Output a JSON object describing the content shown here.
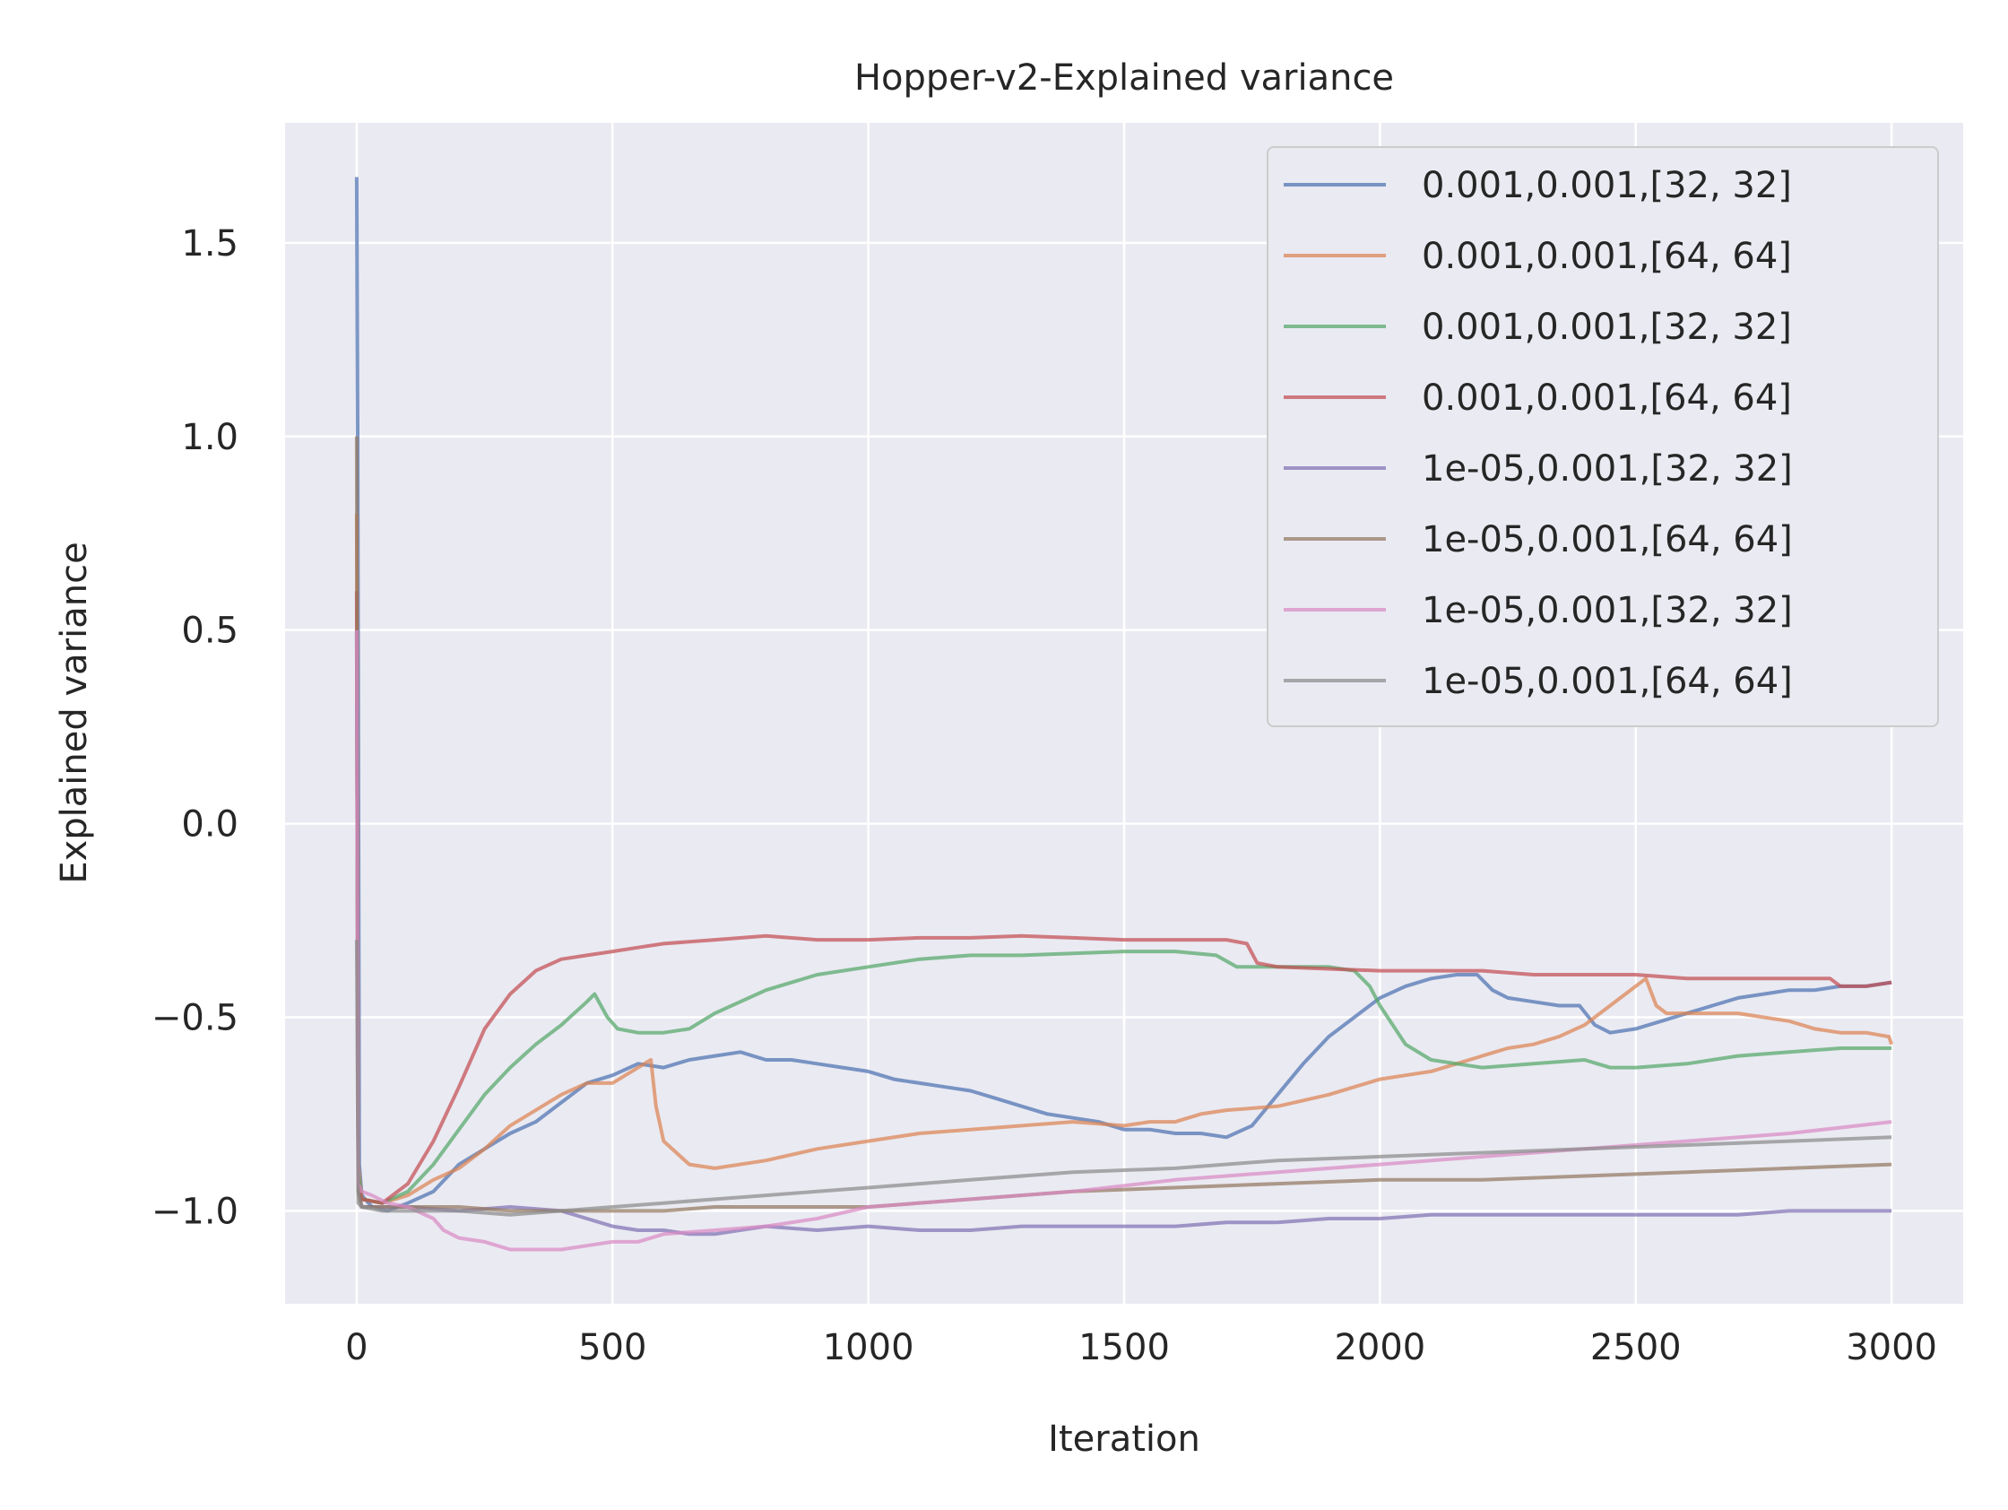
{
  "chart_data": {
    "type": "line",
    "title": "Hopper-v2-Explained variance",
    "xlabel": "Iteration",
    "ylabel": "Explained variance",
    "xlim": [
      -140,
      3140
    ],
    "ylim": [
      -1.24,
      1.81
    ],
    "xticks": [
      0,
      500,
      1000,
      1500,
      2000,
      2500,
      3000
    ],
    "xtick_labels": [
      "0",
      "500",
      "1000",
      "1500",
      "2000",
      "2500",
      "3000"
    ],
    "yticks": [
      1.5,
      1.0,
      0.5,
      0.0,
      -0.5,
      -1.0
    ],
    "ytick_labels": [
      "1.5",
      "1.0",
      "0.5",
      "0.0",
      "−0.5",
      "−1.0"
    ],
    "grid": true,
    "legend_position": "top-right",
    "background": "#eaeaf2",
    "series": [
      {
        "name": "0.001,0.001,[32, 32]",
        "color": "#4c72b0",
        "x": [
          0,
          2,
          5,
          10,
          30,
          60,
          100,
          150,
          200,
          250,
          300,
          350,
          400,
          450,
          500,
          550,
          600,
          650,
          700,
          750,
          800,
          850,
          900,
          950,
          1000,
          1050,
          1100,
          1150,
          1200,
          1250,
          1300,
          1350,
          1400,
          1450,
          1500,
          1550,
          1600,
          1650,
          1700,
          1750,
          1800,
          1850,
          1900,
          1950,
          2000,
          2050,
          2100,
          2150,
          2190,
          2220,
          2250,
          2300,
          2350,
          2390,
          2420,
          2450,
          2500,
          2550,
          2600,
          2650,
          2700,
          2750,
          2800,
          2850,
          2900,
          2950,
          3000
        ],
        "y": [
          1.67,
          1.0,
          -0.88,
          -0.96,
          -0.99,
          -1.0,
          -0.98,
          -0.95,
          -0.88,
          -0.84,
          -0.8,
          -0.77,
          -0.72,
          -0.67,
          -0.65,
          -0.62,
          -0.63,
          -0.61,
          -0.6,
          -0.59,
          -0.61,
          -0.61,
          -0.62,
          -0.63,
          -0.64,
          -0.66,
          -0.67,
          -0.68,
          -0.69,
          -0.71,
          -0.73,
          -0.75,
          -0.76,
          -0.77,
          -0.79,
          -0.79,
          -0.8,
          -0.8,
          -0.81,
          -0.78,
          -0.7,
          -0.62,
          -0.55,
          -0.5,
          -0.45,
          -0.42,
          -0.4,
          -0.39,
          -0.39,
          -0.43,
          -0.45,
          -0.46,
          -0.47,
          -0.47,
          -0.52,
          -0.54,
          -0.53,
          -0.51,
          -0.49,
          -0.47,
          -0.45,
          -0.44,
          -0.43,
          -0.43,
          -0.42,
          -0.42,
          -0.41
        ]
      },
      {
        "name": "0.001,0.001,[64, 64]",
        "color": "#dd8452",
        "x": [
          0,
          3,
          10,
          50,
          100,
          150,
          200,
          250,
          300,
          350,
          400,
          450,
          500,
          550,
          575,
          585,
          600,
          650,
          700,
          800,
          900,
          1000,
          1100,
          1200,
          1300,
          1400,
          1500,
          1550,
          1600,
          1650,
          1700,
          1800,
          1900,
          1950,
          2000,
          2050,
          2100,
          2150,
          2200,
          2250,
          2300,
          2350,
          2400,
          2450,
          2500,
          2520,
          2540,
          2560,
          2600,
          2700,
          2750,
          2800,
          2850,
          2900,
          2950,
          2995,
          3000
        ],
        "y": [
          0.8,
          -0.88,
          -0.97,
          -0.98,
          -0.96,
          -0.92,
          -0.89,
          -0.84,
          -0.78,
          -0.74,
          -0.7,
          -0.67,
          -0.67,
          -0.63,
          -0.61,
          -0.73,
          -0.82,
          -0.88,
          -0.89,
          -0.87,
          -0.84,
          -0.82,
          -0.8,
          -0.79,
          -0.78,
          -0.77,
          -0.78,
          -0.77,
          -0.77,
          -0.75,
          -0.74,
          -0.73,
          -0.7,
          -0.68,
          -0.66,
          -0.65,
          -0.64,
          -0.62,
          -0.6,
          -0.58,
          -0.57,
          -0.55,
          -0.52,
          -0.47,
          -0.42,
          -0.4,
          -0.47,
          -0.49,
          -0.49,
          -0.49,
          -0.5,
          -0.51,
          -0.53,
          -0.54,
          -0.54,
          -0.55,
          -0.57
        ]
      },
      {
        "name": "0.001,0.001,[32, 32]",
        "color": "#55a868",
        "x": [
          0,
          3,
          10,
          50,
          100,
          150,
          200,
          250,
          300,
          350,
          400,
          450,
          465,
          490,
          510,
          550,
          600,
          650,
          700,
          800,
          900,
          1000,
          1100,
          1200,
          1300,
          1400,
          1500,
          1600,
          1680,
          1720,
          1800,
          1900,
          1950,
          1980,
          2000,
          2030,
          2050,
          2100,
          2150,
          2200,
          2300,
          2400,
          2450,
          2500,
          2600,
          2700,
          2800,
          2900,
          3000
        ],
        "y": [
          0.5,
          -0.9,
          -0.97,
          -0.98,
          -0.95,
          -0.88,
          -0.79,
          -0.7,
          -0.63,
          -0.57,
          -0.52,
          -0.46,
          -0.44,
          -0.5,
          -0.53,
          -0.54,
          -0.54,
          -0.53,
          -0.49,
          -0.43,
          -0.39,
          -0.37,
          -0.35,
          -0.34,
          -0.34,
          -0.335,
          -0.33,
          -0.33,
          -0.34,
          -0.37,
          -0.37,
          -0.37,
          -0.38,
          -0.42,
          -0.47,
          -0.53,
          -0.57,
          -0.61,
          -0.62,
          -0.63,
          -0.62,
          -0.61,
          -0.63,
          -0.63,
          -0.62,
          -0.6,
          -0.59,
          -0.58,
          -0.58
        ]
      },
      {
        "name": "0.001,0.001,[64, 64]",
        "color": "#c44e52",
        "x": [
          0,
          3,
          10,
          50,
          100,
          150,
          200,
          250,
          300,
          350,
          400,
          450,
          500,
          550,
          600,
          700,
          800,
          900,
          1000,
          1100,
          1200,
          1300,
          1400,
          1500,
          1600,
          1700,
          1740,
          1760,
          1800,
          1900,
          2000,
          2100,
          2200,
          2300,
          2400,
          2500,
          2600,
          2700,
          2800,
          2880,
          2900,
          2950,
          3000
        ],
        "y": [
          0.6,
          -0.93,
          -0.97,
          -0.98,
          -0.93,
          -0.82,
          -0.68,
          -0.53,
          -0.44,
          -0.38,
          -0.35,
          -0.34,
          -0.33,
          -0.32,
          -0.31,
          -0.3,
          -0.29,
          -0.3,
          -0.3,
          -0.295,
          -0.295,
          -0.29,
          -0.295,
          -0.3,
          -0.3,
          -0.3,
          -0.31,
          -0.36,
          -0.37,
          -0.375,
          -0.38,
          -0.38,
          -0.38,
          -0.39,
          -0.39,
          -0.39,
          -0.4,
          -0.4,
          -0.4,
          -0.4,
          -0.42,
          -0.42,
          -0.41
        ]
      },
      {
        "name": "1e-05,0.001,[32, 32]",
        "color": "#8172b3",
        "x": [
          0,
          3,
          10,
          50,
          100,
          200,
          300,
          400,
          450,
          500,
          550,
          600,
          650,
          700,
          800,
          900,
          1000,
          1100,
          1200,
          1300,
          1400,
          1500,
          1600,
          1700,
          1800,
          1900,
          2000,
          2100,
          2200,
          2300,
          2400,
          2500,
          2600,
          2700,
          2800,
          2900,
          3000
        ],
        "y": [
          0.5,
          -0.95,
          -0.99,
          -0.99,
          -0.99,
          -1.0,
          -0.99,
          -1.0,
          -1.02,
          -1.04,
          -1.05,
          -1.05,
          -1.06,
          -1.06,
          -1.04,
          -1.05,
          -1.04,
          -1.05,
          -1.05,
          -1.04,
          -1.04,
          -1.04,
          -1.04,
          -1.03,
          -1.03,
          -1.02,
          -1.02,
          -1.01,
          -1.01,
          -1.01,
          -1.01,
          -1.01,
          -1.01,
          -1.01,
          -1.0,
          -1.0,
          -1.0
        ]
      },
      {
        "name": "1e-05,0.001,[64, 64]",
        "color": "#937860",
        "x": [
          0,
          3,
          10,
          50,
          100,
          200,
          300,
          400,
          500,
          600,
          700,
          800,
          900,
          1000,
          1200,
          1400,
          1600,
          1800,
          2000,
          2200,
          2400,
          2600,
          2800,
          3000
        ],
        "y": [
          1.0,
          -0.95,
          -0.99,
          -0.99,
          -0.99,
          -0.99,
          -1.0,
          -1.0,
          -1.0,
          -1.0,
          -0.99,
          -0.99,
          -0.99,
          -0.99,
          -0.97,
          -0.95,
          -0.94,
          -0.93,
          -0.92,
          -0.92,
          -0.91,
          -0.9,
          -0.89,
          -0.88
        ]
      },
      {
        "name": "1e-05,0.001,[32, 32]",
        "color": "#da8bc3",
        "x": [
          0,
          3,
          10,
          30,
          60,
          100,
          150,
          170,
          200,
          250,
          300,
          350,
          400,
          450,
          500,
          550,
          600,
          700,
          800,
          900,
          1000,
          1200,
          1400,
          1600,
          1800,
          2000,
          2200,
          2400,
          2600,
          2800,
          3000
        ],
        "y": [
          0.5,
          -0.93,
          -0.95,
          -0.96,
          -0.98,
          -0.99,
          -1.02,
          -1.05,
          -1.07,
          -1.08,
          -1.1,
          -1.1,
          -1.1,
          -1.09,
          -1.08,
          -1.08,
          -1.06,
          -1.05,
          -1.04,
          -1.02,
          -0.99,
          -0.97,
          -0.95,
          -0.92,
          -0.9,
          -0.88,
          -0.86,
          -0.84,
          -0.82,
          -0.8,
          -0.77
        ]
      },
      {
        "name": "1e-05,0.001,[64, 64]",
        "color": "#8c8c8c",
        "x": [
          0,
          3,
          10,
          50,
          100,
          200,
          300,
          400,
          500,
          600,
          700,
          800,
          900,
          1000,
          1200,
          1400,
          1600,
          1800,
          2000,
          2200,
          2400,
          2600,
          2800,
          3000
        ],
        "y": [
          -0.3,
          -0.98,
          -0.99,
          -1.0,
          -1.0,
          -1.0,
          -1.01,
          -1.0,
          -0.99,
          -0.98,
          -0.97,
          -0.96,
          -0.95,
          -0.94,
          -0.92,
          -0.9,
          -0.89,
          -0.87,
          -0.86,
          -0.85,
          -0.84,
          -0.83,
          -0.82,
          -0.81
        ]
      }
    ]
  }
}
